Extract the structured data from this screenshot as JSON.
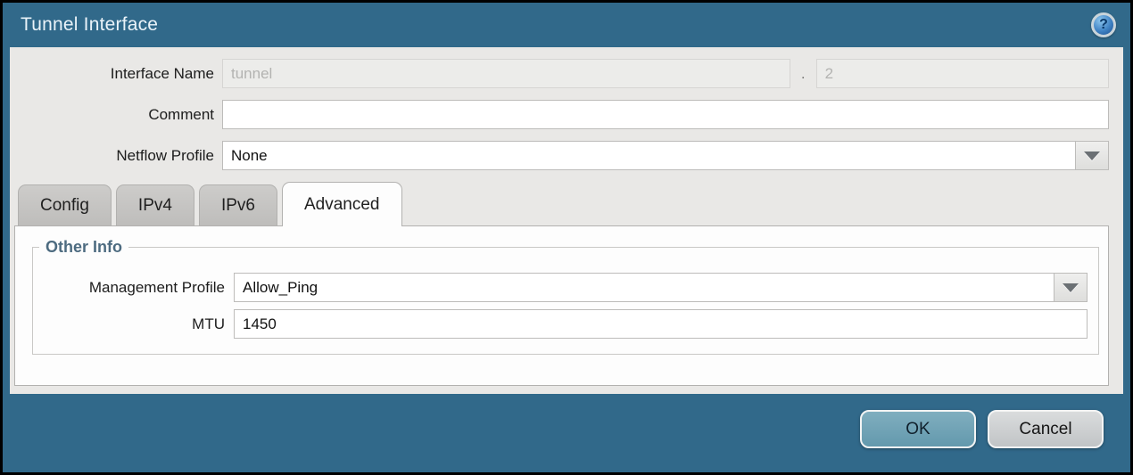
{
  "dialog": {
    "title": "Tunnel Interface",
    "icons": {
      "help_glyph": "?"
    },
    "form": {
      "interface_name": {
        "label": "Interface Name",
        "base_value": "tunnel",
        "separator": ".",
        "suffix_value": "2"
      },
      "comment": {
        "label": "Comment",
        "value": ""
      },
      "netflow_profile": {
        "label": "Netflow Profile",
        "selected": "None"
      }
    },
    "tabs": [
      {
        "label": "Config",
        "active": false
      },
      {
        "label": "IPv4",
        "active": false
      },
      {
        "label": "IPv6",
        "active": false
      },
      {
        "label": "Advanced",
        "active": true
      }
    ],
    "other_info": {
      "section_title": "Other Info",
      "management_profile": {
        "label": "Management Profile",
        "selected": "Allow_Ping"
      },
      "mtu": {
        "label": "MTU",
        "value": "1450"
      }
    },
    "buttons": {
      "ok": "OK",
      "cancel": "Cancel"
    },
    "colors": {
      "titlebar": "#31698A",
      "body": "#E9E8E6",
      "section_title": "#4D6B80",
      "ok_button": "#6FA0B5",
      "cancel_button": "#C9CCCE"
    }
  }
}
